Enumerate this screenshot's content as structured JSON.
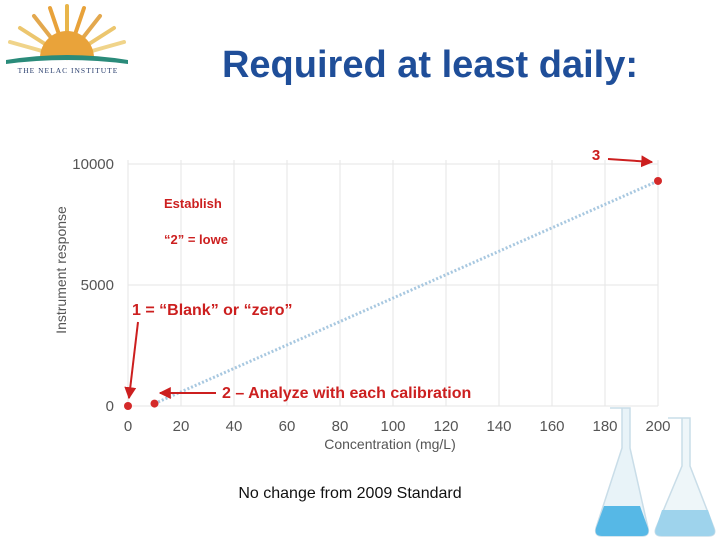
{
  "logo": {
    "text": "THE NELAC INSTITUTE"
  },
  "title": "Required at least daily:",
  "chart_data": {
    "type": "scatter",
    "xlabel": "Concentration (mg/L)",
    "ylabel": "Instrument response",
    "xlim": [
      0,
      200
    ],
    "ylim": [
      0,
      10000
    ],
    "x_ticks": [
      0,
      20,
      40,
      60,
      80,
      100,
      120,
      140,
      160,
      180,
      200
    ],
    "y_ticks": [
      0,
      5000,
      10000
    ],
    "grid": true,
    "series": [
      {
        "points": [
          [
            0,
            0
          ],
          [
            10,
            100
          ],
          [
            200,
            9300
          ]
        ]
      }
    ],
    "trendline": [
      [
        10,
        100
      ],
      [
        200,
        9300
      ]
    ],
    "annotations": [
      {
        "id": "a3",
        "text": "3"
      },
      {
        "id": "est",
        "text": "Establish"
      },
      {
        "id": "low",
        "text": "“2” = lowe"
      },
      {
        "id": "a1",
        "text": "1 = “Blank” or “zero”"
      },
      {
        "id": "a2",
        "text": "2 – Analyze with each calibration"
      }
    ]
  },
  "footer": "No change from 2009 Standard",
  "colors": {
    "title": "#1f4e99",
    "annotation": "#cc1f1f",
    "trend": "#a8c8e0",
    "point": "#d42a2a"
  }
}
